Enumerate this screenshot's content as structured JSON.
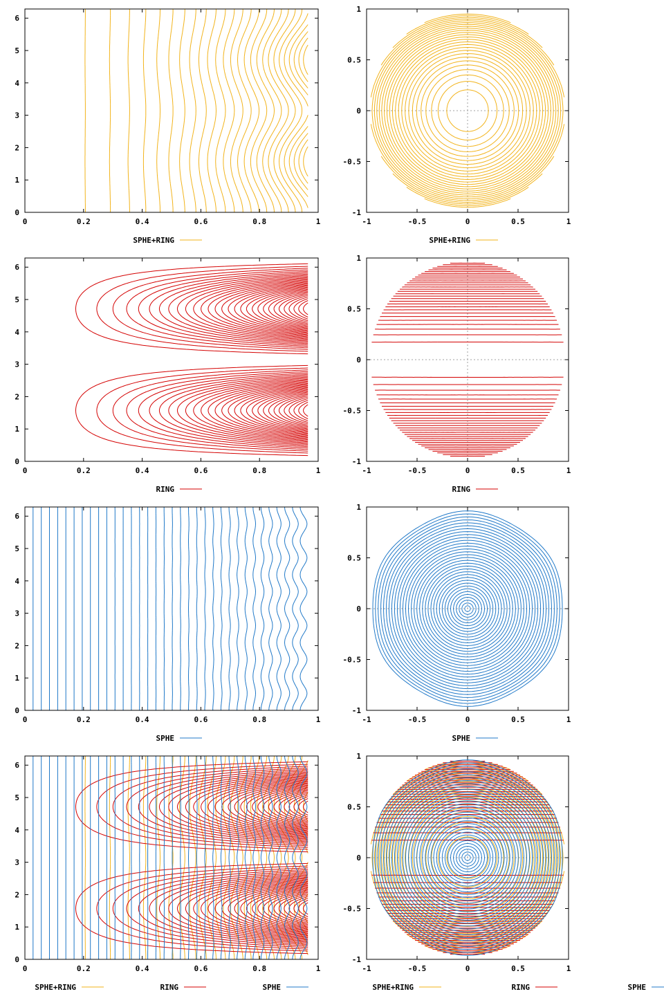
{
  "colors": {
    "sphe_ring": "#f2b31a",
    "ring": "#d40000",
    "sphe": "#1f78c8",
    "axis": "#000000",
    "zero_line": "#a0a0a0"
  },
  "chart_data": [
    {
      "type": "contour",
      "view": "cartesian",
      "row": 1,
      "col": "left",
      "title": "",
      "xlabel": "",
      "ylabel": "",
      "xlim": [
        0,
        1
      ],
      "ylim": [
        0,
        6.283
      ],
      "xticks": [
        "0",
        "0.2",
        "0.4",
        "0.6",
        "0.8",
        "1"
      ],
      "yticks": [
        "0",
        "1",
        "2",
        "3",
        "4",
        "5",
        "6"
      ],
      "series": [
        {
          "name": "SPHE+RING",
          "color_key": "sphe_ring"
        }
      ],
      "legend": [
        "SPHE+RING"
      ],
      "legend_position": "bottom-center",
      "field": "sphe+ring",
      "contour_levels": 26
    },
    {
      "type": "contour",
      "view": "polar",
      "row": 1,
      "col": "right",
      "title": "",
      "xlabel": "",
      "ylabel": "",
      "xlim": [
        -1,
        1
      ],
      "ylim": [
        -1,
        1
      ],
      "xticks": [
        "-1",
        "-0.5",
        "0",
        "0.5",
        "1"
      ],
      "yticks": [
        "-1",
        "-0.5",
        "0",
        "0.5",
        "1"
      ],
      "series": [
        {
          "name": "SPHE+RING",
          "color_key": "sphe_ring"
        }
      ],
      "legend": [
        "SPHE+RING"
      ],
      "legend_position": "bottom-center",
      "field": "sphe+ring",
      "contour_levels": 26
    },
    {
      "type": "contour",
      "view": "cartesian",
      "row": 2,
      "col": "left",
      "title": "",
      "xlabel": "",
      "ylabel": "",
      "xlim": [
        0,
        1
      ],
      "ylim": [
        0,
        6.283
      ],
      "xticks": [
        "0",
        "0.2",
        "0.4",
        "0.6",
        "0.8",
        "1"
      ],
      "yticks": [
        "0",
        "1",
        "2",
        "3",
        "4",
        "5",
        "6"
      ],
      "series": [
        {
          "name": "RING",
          "color_key": "ring"
        }
      ],
      "legend": [
        "RING"
      ],
      "legend_position": "bottom-center",
      "field": "ring",
      "contour_levels": 30
    },
    {
      "type": "contour",
      "view": "polar",
      "row": 2,
      "col": "right",
      "title": "",
      "xlabel": "",
      "ylabel": "",
      "xlim": [
        -1,
        1
      ],
      "ylim": [
        -1,
        1
      ],
      "xticks": [
        "-1",
        "-0.5",
        "0",
        "0.5",
        "1"
      ],
      "yticks": [
        "-1",
        "-0.5",
        "0",
        "0.5",
        "1"
      ],
      "series": [
        {
          "name": "RING",
          "color_key": "ring"
        }
      ],
      "legend": [
        "RING"
      ],
      "legend_position": "bottom-center",
      "field": "ring",
      "contour_levels": 30
    },
    {
      "type": "contour",
      "view": "cartesian",
      "row": 3,
      "col": "left",
      "title": "",
      "xlabel": "",
      "ylabel": "",
      "xlim": [
        0,
        1
      ],
      "ylim": [
        0,
        6.283
      ],
      "xticks": [
        "0",
        "0.2",
        "0.4",
        "0.6",
        "0.8",
        "1"
      ],
      "yticks": [
        "0",
        "1",
        "2",
        "3",
        "4",
        "5",
        "6"
      ],
      "series": [
        {
          "name": "SPHE",
          "color_key": "sphe"
        }
      ],
      "legend": [
        "SPHE"
      ],
      "legend_position": "bottom-center",
      "field": "sphe",
      "contour_levels": 34
    },
    {
      "type": "contour",
      "view": "polar",
      "row": 3,
      "col": "right",
      "title": "",
      "xlabel": "",
      "ylabel": "",
      "xlim": [
        -1,
        1
      ],
      "ylim": [
        -1,
        1
      ],
      "xticks": [
        "-1",
        "-0.5",
        "0",
        "0.5",
        "1"
      ],
      "yticks": [
        "-1",
        "-0.5",
        "0",
        "0.5",
        "1"
      ],
      "series": [
        {
          "name": "SPHE",
          "color_key": "sphe"
        }
      ],
      "legend": [
        "SPHE"
      ],
      "legend_position": "bottom-center",
      "field": "sphe",
      "contour_levels": 34
    },
    {
      "type": "contour",
      "view": "cartesian",
      "row": 4,
      "col": "left",
      "title": "",
      "xlabel": "",
      "ylabel": "",
      "xlim": [
        0,
        1
      ],
      "ylim": [
        0,
        6.283
      ],
      "xticks": [
        "0",
        "0.2",
        "0.4",
        "0.6",
        "0.8",
        "1"
      ],
      "yticks": [
        "0",
        "1",
        "2",
        "3",
        "4",
        "5",
        "6"
      ],
      "series": [
        {
          "name": "SPHE+RING",
          "color_key": "sphe_ring"
        },
        {
          "name": "RING",
          "color_key": "ring"
        },
        {
          "name": "SPHE",
          "color_key": "sphe"
        }
      ],
      "legend": [
        "SPHE+RING",
        "RING",
        "SPHE"
      ],
      "legend_position": "bottom",
      "field": "overlay",
      "contour_levels": 26
    },
    {
      "type": "contour",
      "view": "polar",
      "row": 4,
      "col": "right",
      "title": "",
      "xlabel": "",
      "ylabel": "",
      "xlim": [
        -1,
        1
      ],
      "ylim": [
        -1,
        1
      ],
      "xticks": [
        "-1",
        "-0.5",
        "0",
        "0.5",
        "1"
      ],
      "yticks": [
        "-1",
        "-0.5",
        "0",
        "0.5",
        "1"
      ],
      "series": [
        {
          "name": "SPHE+RING",
          "color_key": "sphe_ring"
        },
        {
          "name": "RING",
          "color_key": "ring"
        },
        {
          "name": "SPHE",
          "color_key": "sphe"
        }
      ],
      "legend": [
        "SPHE+RING",
        "RING",
        "SPHE"
      ],
      "legend_position": "bottom",
      "field": "overlay",
      "contour_levels": 26
    }
  ]
}
